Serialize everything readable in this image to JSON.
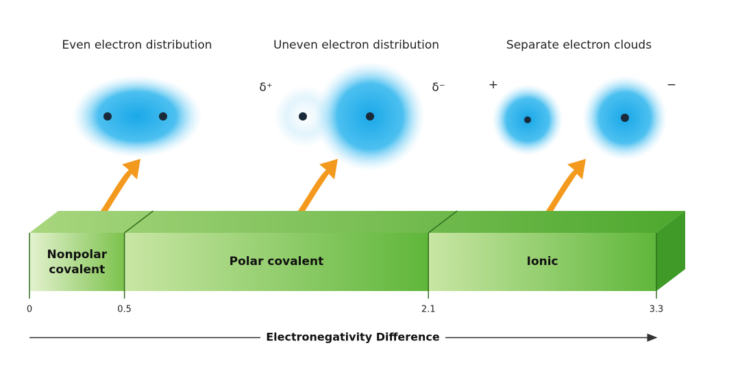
{
  "panels": [
    {
      "title": "Even electron distribution"
    },
    {
      "title": "Uneven electron distribution",
      "left_charge": "δ⁺",
      "right_charge": "δ⁻"
    },
    {
      "title": "Separate electron clouds",
      "left_charge": "+",
      "right_charge": "−"
    }
  ],
  "scale": {
    "ticks": [
      0,
      0.5,
      2.1,
      3.3
    ],
    "regions": [
      "Nonpolar covalent",
      "Polar covalent",
      "Ionic"
    ],
    "axis_label": "Electronegativity Difference"
  }
}
